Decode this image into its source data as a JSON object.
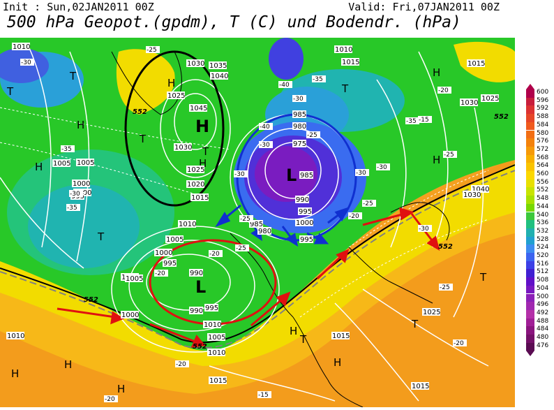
{
  "header": {
    "init_text": "Init : Sun,02JAN2011 00Z",
    "valid_text": "Valid: Fri,07JAN2011 00Z",
    "title": "500 hPa Geopot.(gpdm), T (C) und Bodendr. (hPa)"
  },
  "legend": {
    "values": [
      "600",
      "596",
      "592",
      "588",
      "584",
      "580",
      "576",
      "572",
      "568",
      "564",
      "560",
      "556",
      "552",
      "548",
      "544",
      "540",
      "536",
      "532",
      "528",
      "524",
      "520",
      "516",
      "512",
      "508",
      "504",
      "500",
      "496",
      "492",
      "488",
      "484",
      "480",
      "476"
    ],
    "colors": [
      "#b0004a",
      "#c81e3c",
      "#dc3232",
      "#e64628",
      "#f05a1e",
      "#f26e14",
      "#f4820c",
      "#f69a08",
      "#f8b000",
      "#fac400",
      "#fcd800",
      "#e8e000",
      "#c8e400",
      "#a8e000",
      "#78d800",
      "#3cc83c",
      "#20c080",
      "#20b0b0",
      "#20a0d0",
      "#3c8cf0",
      "#3c64f0",
      "#3c40e6",
      "#4020d2",
      "#6010c8",
      "#7818c0",
      "#8c20b8",
      "#a028b0",
      "#b430a8",
      "#a01e96",
      "#8a147e",
      "#741068",
      "#5a0c52"
    ]
  },
  "map": {
    "pressure_labels": [
      "1010",
      "1030",
      "1035",
      "1040",
      "1025",
      "1045",
      "1030",
      "1025",
      "1020",
      "1015",
      "1010",
      "1005",
      "1000",
      "995",
      "1005",
      "1000",
      "1005",
      "1000",
      "995",
      "990",
      "985",
      "980",
      "975",
      "985",
      "990",
      "995",
      "1000",
      "995",
      "985",
      "980",
      "1010",
      "1015",
      "1010",
      "1000",
      "1005",
      "995",
      "990",
      "1000",
      "1005",
      "1010",
      "1015",
      "1015",
      "1010",
      "1015",
      "1025",
      "1015",
      "1025",
      "1030",
      "1040",
      "1030"
    ],
    "temp_labels": [
      "-30",
      "-25",
      "-20",
      "-35",
      "-30",
      "-35",
      "-40",
      "-30",
      "-25",
      "-20",
      "-40",
      "-35",
      "-30",
      "-25",
      "-20",
      "-30",
      "-25",
      "-20",
      "-15",
      "-20",
      "-25",
      "-30",
      "-35",
      "-30",
      "-25",
      "-20",
      "-30",
      "-25",
      "-20",
      "-15"
    ],
    "isohypse_label": "552",
    "high_letter": "H",
    "low_letter": "L",
    "trough_letter": "T"
  }
}
